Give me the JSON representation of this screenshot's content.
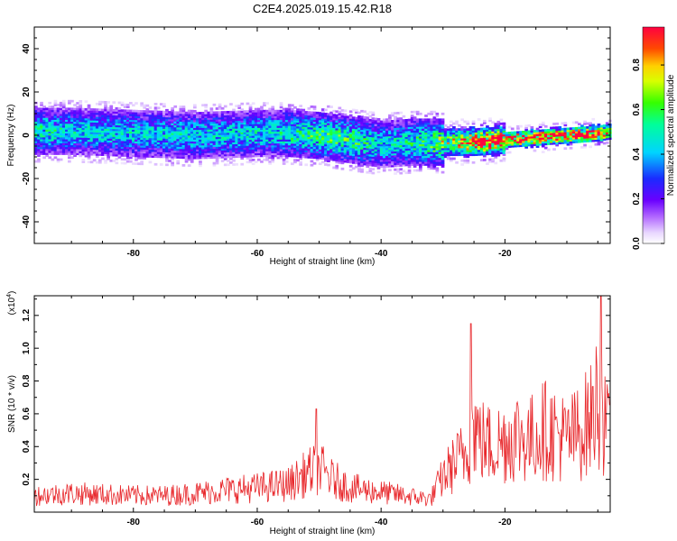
{
  "title": "C2E4.2025.019.15.42.R18",
  "chart_data": [
    {
      "type": "heatmap",
      "title": "C2E4.2025.019.15.42.R18",
      "xlabel": "Height of straight line (km)",
      "ylabel": "Frequency (Hz)",
      "xlim": [
        -96,
        -3
      ],
      "ylim": [
        -50,
        50
      ],
      "x_ticks": [
        -80,
        -60,
        -40,
        -20
      ],
      "x_tick_labels": [
        "-80",
        "-60",
        "-40",
        "-20"
      ],
      "y_ticks": [
        -40,
        -20,
        0,
        20,
        40
      ],
      "y_tick_labels": [
        "-40",
        "-20",
        "0",
        "20",
        "40"
      ],
      "colorbar": {
        "label": "Normalized spectral amplitude",
        "range": [
          0.0,
          0.97
        ],
        "ticks": [
          0.0,
          0.2,
          0.4,
          0.6,
          0.8
        ],
        "tick_labels": [
          "0.0",
          "0.2",
          "0.4",
          "0.6",
          "0.8"
        ],
        "colormap": "rainbow (white-violet-blue-cyan-green-yellow-red)"
      },
      "ridge": {
        "description": "dominant frequency band vs height",
        "x": [
          -96,
          -90,
          -80,
          -70,
          -60,
          -55,
          -50,
          -45,
          -40,
          -35,
          -30,
          -25,
          -20,
          -15,
          -10,
          -5,
          -3
        ],
        "center_freq": [
          2,
          2,
          1,
          0,
          1,
          1,
          0,
          -2,
          -4,
          -3,
          -3,
          -3,
          -2,
          -1,
          0,
          1,
          2
        ],
        "peak_amplitude": [
          0.45,
          0.4,
          0.4,
          0.4,
          0.4,
          0.45,
          0.5,
          0.5,
          0.4,
          0.45,
          0.6,
          0.9,
          0.9,
          0.9,
          0.9,
          0.85,
          0.8
        ]
      }
    },
    {
      "type": "line",
      "xlabel": "Height of straight line (km)",
      "ylabel": "SNR (10 * v/v)",
      "y_multiplier": "(x10^4)",
      "y_multiplier_base": "(x10",
      "y_multiplier_exp": "4",
      "y_multiplier_close": ")",
      "xlim": [
        -96,
        -3
      ],
      "ylim": [
        0,
        1.32
      ],
      "x_ticks": [
        -80,
        -60,
        -40,
        -20
      ],
      "x_tick_labels": [
        "-80",
        "-60",
        "-40",
        "-20"
      ],
      "y_ticks": [
        0.2,
        0.4,
        0.6,
        0.8,
        1.0,
        1.2
      ],
      "y_tick_labels": [
        "0.2",
        "0.4",
        "0.6",
        "0.8",
        "1.0",
        "1.2"
      ],
      "series": [
        {
          "color": "#e8272b",
          "envelope_x": [
            -96,
            -90,
            -85,
            -80,
            -75,
            -70,
            -65,
            -60,
            -55,
            -52,
            -50,
            -48,
            -45,
            -40,
            -35,
            -32,
            -30,
            -28,
            -26,
            -25,
            -24,
            -22,
            -20,
            -18,
            -16,
            -14,
            -12,
            -10,
            -8,
            -6,
            -5,
            -4,
            -3
          ],
          "envelope_y": [
            0.15,
            0.17,
            0.16,
            0.15,
            0.15,
            0.17,
            0.2,
            0.22,
            0.25,
            0.35,
            0.4,
            0.3,
            0.22,
            0.18,
            0.14,
            0.12,
            0.32,
            0.45,
            0.55,
            0.8,
            0.65,
            0.6,
            0.65,
            0.7,
            0.65,
            0.75,
            0.72,
            0.65,
            0.72,
            0.85,
            1.05,
            0.8,
            0.65
          ],
          "peaks": [
            {
              "x": -50.5,
              "y": 0.63
            },
            {
              "x": -25.5,
              "y": 1.15
            },
            {
              "x": -4.5,
              "y": 1.32
            }
          ]
        }
      ]
    }
  ]
}
